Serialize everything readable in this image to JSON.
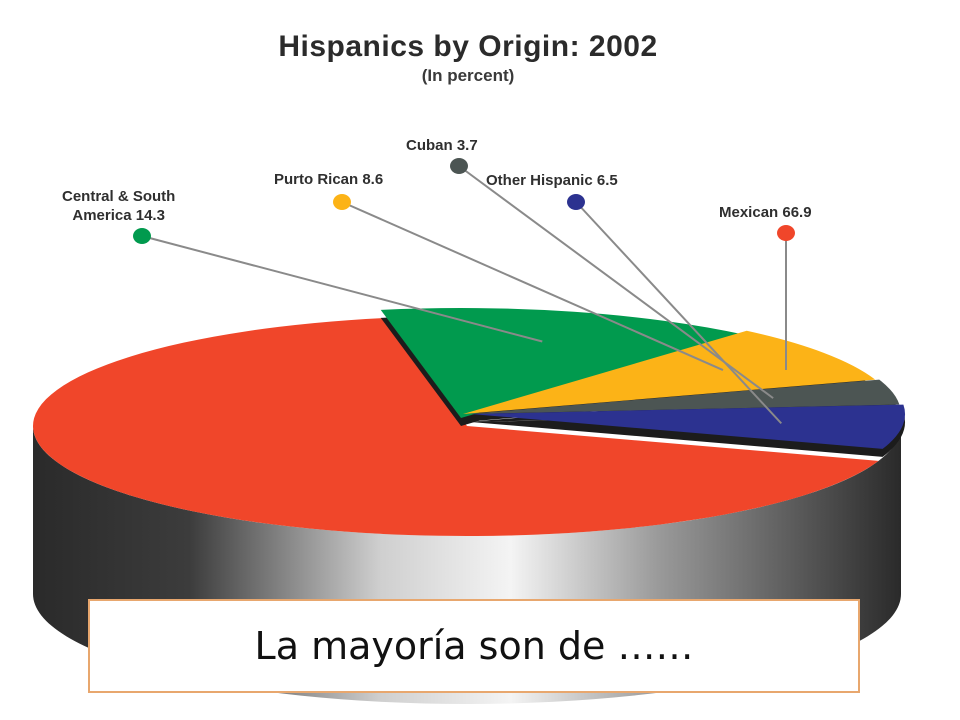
{
  "chart_data": {
    "type": "pie",
    "title": "Hispanics by Origin: 2002",
    "subtitle": "(In percent)",
    "slices": [
      {
        "label": "Mexican",
        "value": 66.9,
        "color": "#f0462a"
      },
      {
        "label": "Central & South America",
        "value": 14.3,
        "color": "#019a4e"
      },
      {
        "label": "Purto Rican",
        "value": 8.6,
        "color": "#fcb317"
      },
      {
        "label": "Cuban",
        "value": 3.7,
        "color": "#4c5553"
      },
      {
        "label": "Other Hispanic",
        "value": 6.5,
        "color": "#2c3290"
      }
    ],
    "labels": {
      "central": "Central & South\nAmerica 14.3",
      "puerto": "Purto Rican 8.6",
      "cuban": "Cuban 3.7",
      "other": "Other Hispanic 6.5",
      "mexican": "Mexican 66.9"
    }
  },
  "caption": "La mayoría son de ……"
}
